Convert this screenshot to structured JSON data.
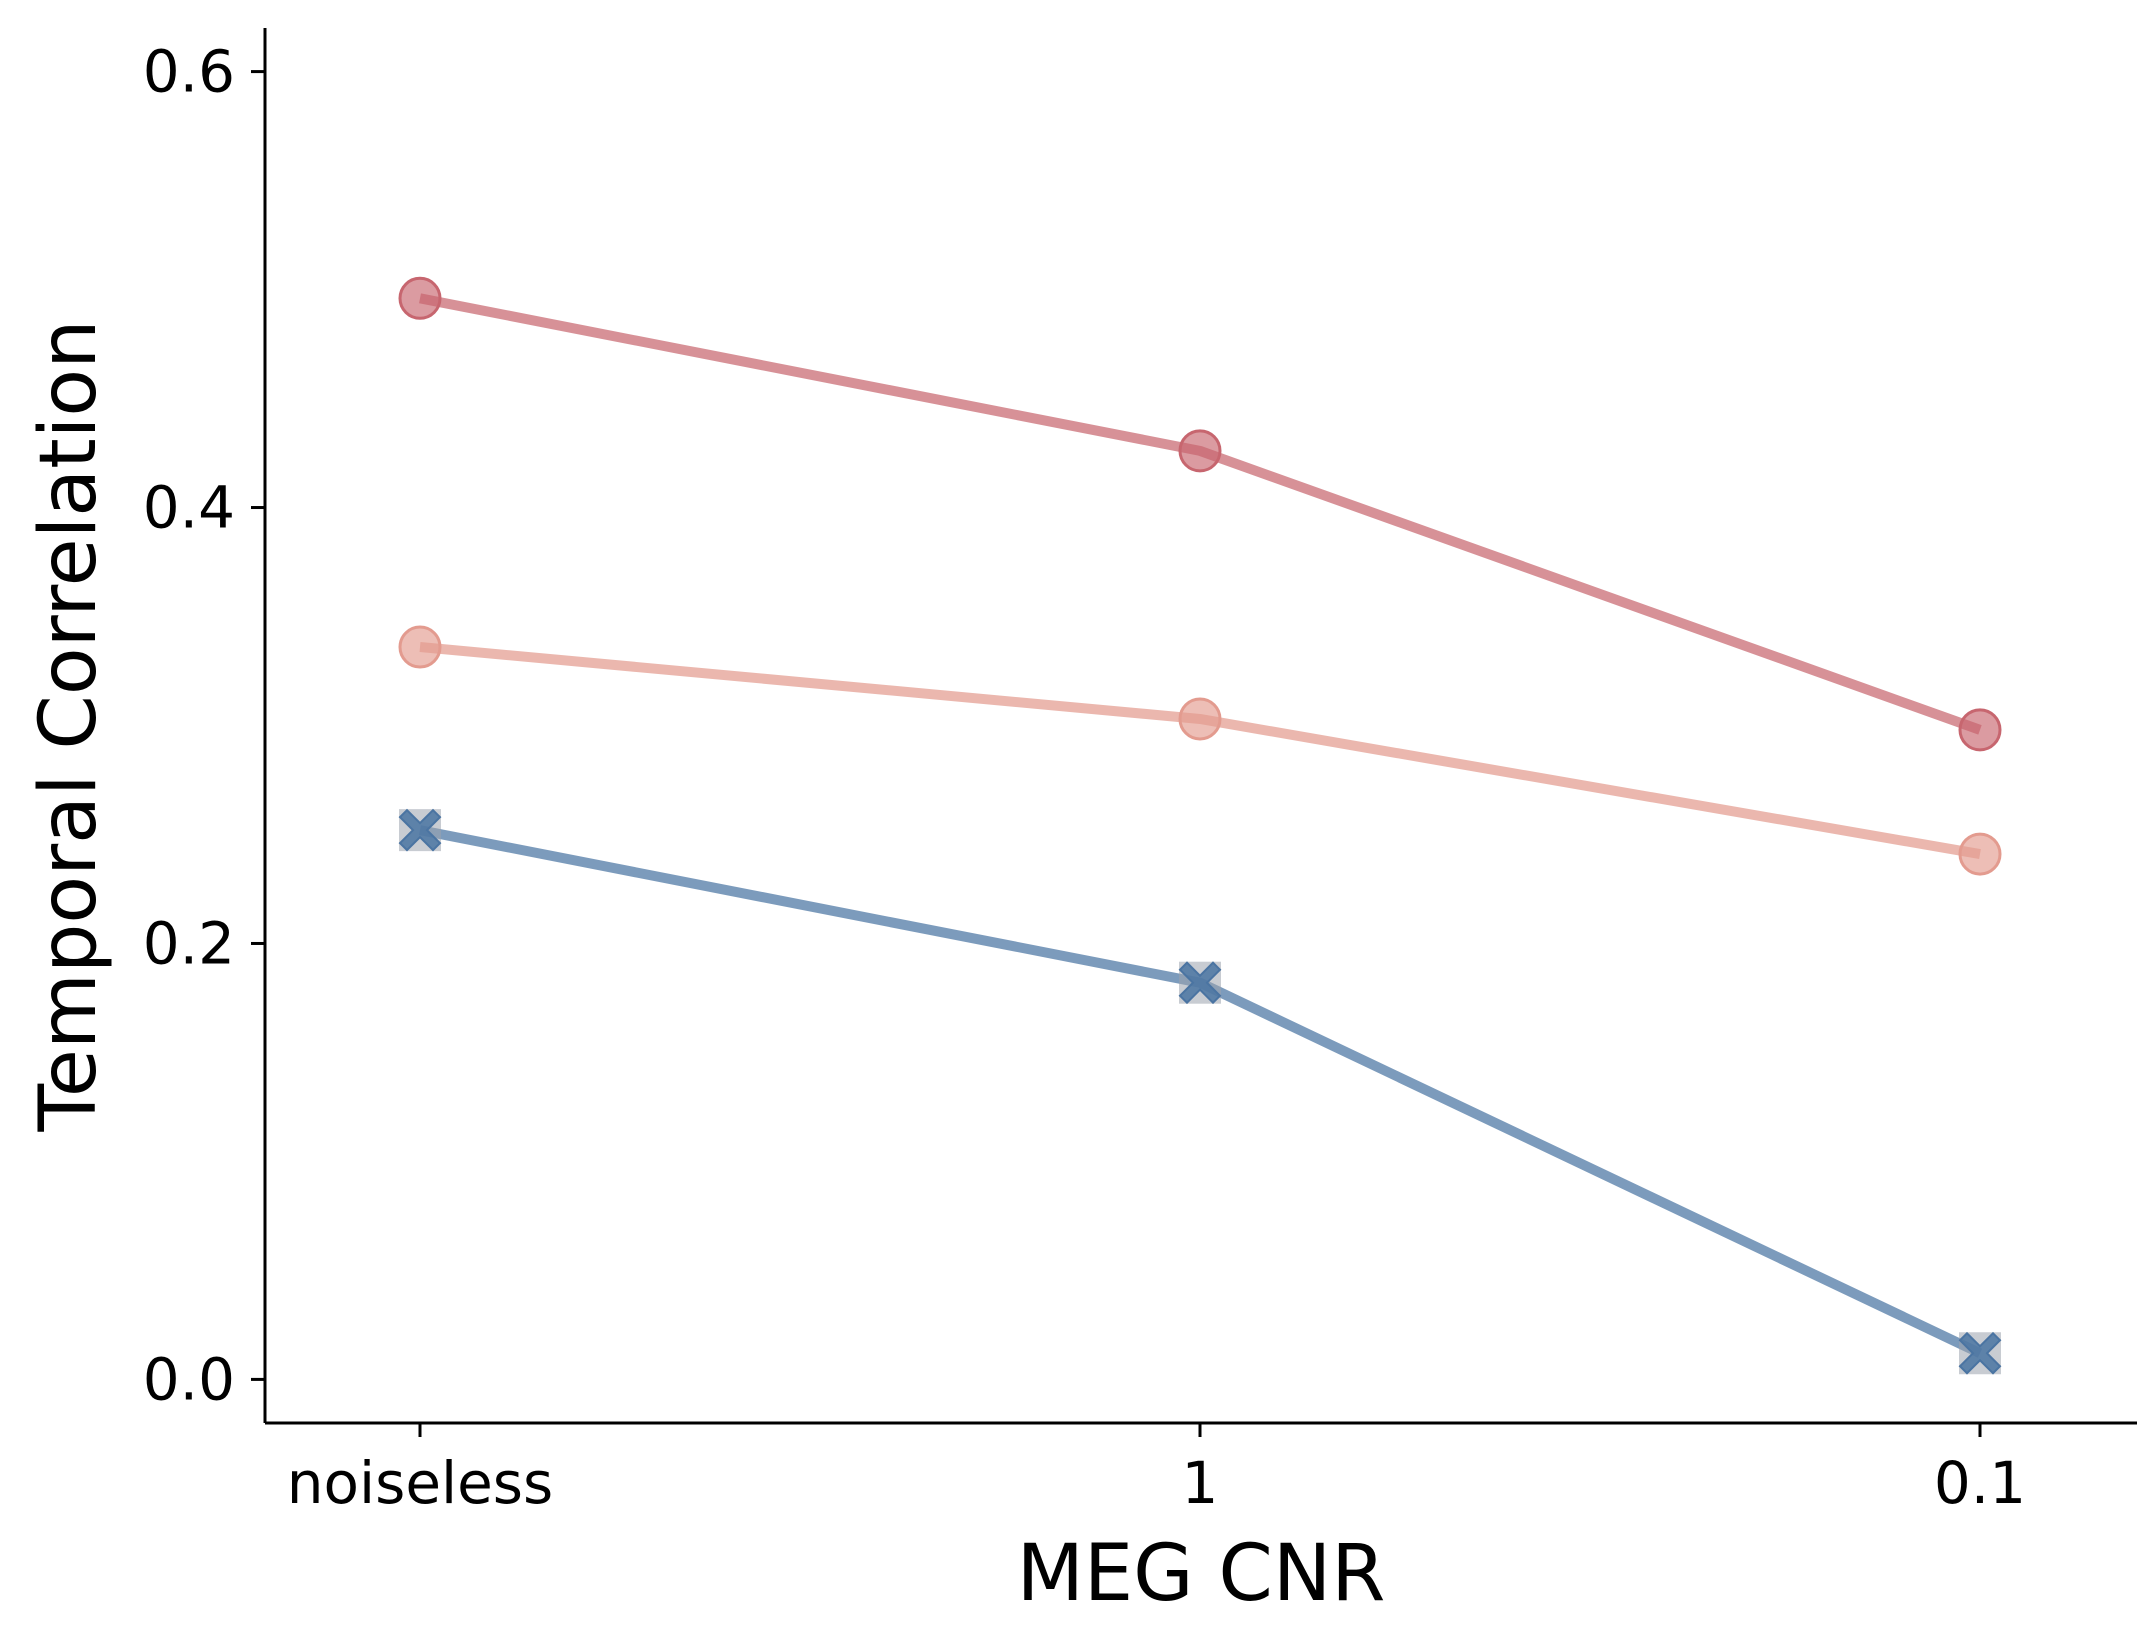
{
  "chart_data": {
    "type": "line",
    "title": "",
    "xlabel": "MEG CNR",
    "ylabel": "Temporal Correlation",
    "categories": [
      "noiseless",
      "1",
      "0.1"
    ],
    "yticks": [
      0.0,
      0.2,
      0.4,
      0.6
    ],
    "ytick_labels": [
      "0.0",
      "0.2",
      "0.4",
      "0.6"
    ],
    "ylim": [
      -0.02,
      0.62
    ],
    "grid": false,
    "legend": "none",
    "series": [
      {
        "values": [
          0.496,
          0.426,
          0.298
        ],
        "color": "#c7666f",
        "marker": "circle"
      },
      {
        "values": [
          0.336,
          0.303,
          0.241
        ],
        "color": "#e39b8f",
        "marker": "circle"
      },
      {
        "values": [
          0.252,
          0.182,
          0.012
        ],
        "color": "#4a74a2",
        "marker": "x-filled"
      }
    ]
  }
}
